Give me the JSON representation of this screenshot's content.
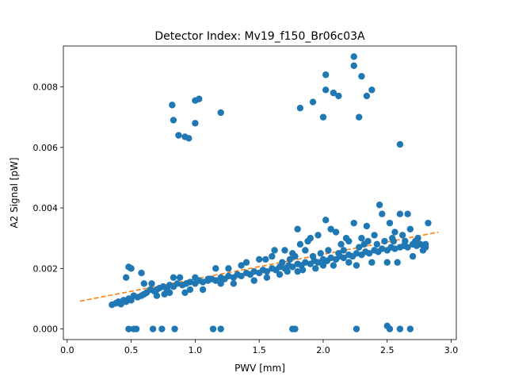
{
  "chart_data": {
    "type": "scatter",
    "title": "Detector Index: Mv19_f150_Br06c03A",
    "xlabel": "PWV [mm]",
    "ylabel": "A2 Signal [pW]",
    "xlim": [
      -0.03,
      3.04
    ],
    "ylim": [
      -0.00035,
      0.00935
    ],
    "xticks": [
      {
        "value": 0.0,
        "label": "0.0"
      },
      {
        "value": 0.5,
        "label": "0.5"
      },
      {
        "value": 1.0,
        "label": "1.0"
      },
      {
        "value": 1.5,
        "label": "1.5"
      },
      {
        "value": 2.0,
        "label": "2.0"
      },
      {
        "value": 2.5,
        "label": "2.5"
      },
      {
        "value": 3.0,
        "label": "3.0"
      }
    ],
    "yticks": [
      {
        "value": 0.0,
        "label": "0.000"
      },
      {
        "value": 0.002,
        "label": "0.002"
      },
      {
        "value": 0.004,
        "label": "0.004"
      },
      {
        "value": 0.006,
        "label": "0.006"
      },
      {
        "value": 0.008,
        "label": "0.008"
      }
    ],
    "grid": false,
    "colors": {
      "points": "#1f77b4",
      "fit": "#ff7f0e",
      "axes": "#000000"
    },
    "series": [
      {
        "name": "measurements",
        "kind": "scatter",
        "points": [
          [
            0.35,
            0.0008
          ],
          [
            0.38,
            0.00085
          ],
          [
            0.4,
            0.0009
          ],
          [
            0.42,
            0.00082
          ],
          [
            0.44,
            0.00095
          ],
          [
            0.46,
            0.0009
          ],
          [
            0.48,
            0.001
          ],
          [
            0.5,
            0.00095
          ],
          [
            0.52,
            0.0011
          ],
          [
            0.55,
            0.00105
          ],
          [
            0.58,
            0.0011
          ],
          [
            0.6,
            0.00115
          ],
          [
            0.62,
            0.0012
          ],
          [
            0.65,
            0.0013
          ],
          [
            0.68,
            0.00125
          ],
          [
            0.7,
            0.0013
          ],
          [
            0.72,
            0.00135
          ],
          [
            0.75,
            0.0014
          ],
          [
            0.78,
            0.0013
          ],
          [
            0.8,
            0.00145
          ],
          [
            0.83,
            0.0014
          ],
          [
            0.86,
            0.0015
          ],
          [
            0.9,
            0.00145
          ],
          [
            0.93,
            0.0015
          ],
          [
            0.96,
            0.00155
          ],
          [
            1.0,
            0.0015
          ],
          [
            1.03,
            0.0016
          ],
          [
            1.06,
            0.00155
          ],
          [
            1.1,
            0.0016
          ],
          [
            1.13,
            0.00165
          ],
          [
            1.16,
            0.0016
          ],
          [
            1.2,
            0.0017
          ],
          [
            1.23,
            0.00165
          ],
          [
            1.26,
            0.00175
          ],
          [
            1.3,
            0.0017
          ],
          [
            1.33,
            0.0018
          ],
          [
            1.36,
            0.00175
          ],
          [
            1.4,
            0.00185
          ],
          [
            1.43,
            0.0018
          ],
          [
            1.46,
            0.0019
          ],
          [
            1.5,
            0.00185
          ],
          [
            1.53,
            0.00195
          ],
          [
            1.56,
            0.0019
          ],
          [
            1.6,
            0.002
          ],
          [
            1.63,
            0.00195
          ],
          [
            1.66,
            0.00205
          ],
          [
            1.7,
            0.002
          ],
          [
            1.73,
            0.0021
          ],
          [
            1.76,
            0.00205
          ],
          [
            1.8,
            0.00215
          ],
          [
            1.83,
            0.0021
          ],
          [
            1.86,
            0.0022
          ],
          [
            1.9,
            0.00215
          ],
          [
            1.93,
            0.00225
          ],
          [
            1.96,
            0.0022
          ],
          [
            2.0,
            0.0023
          ],
          [
            2.03,
            0.00225
          ],
          [
            2.06,
            0.00235
          ],
          [
            2.1,
            0.0023
          ],
          [
            2.13,
            0.0024
          ],
          [
            2.16,
            0.00235
          ],
          [
            2.2,
            0.00245
          ],
          [
            2.23,
            0.0024
          ],
          [
            2.26,
            0.0025
          ],
          [
            2.3,
            0.00245
          ],
          [
            2.33,
            0.00255
          ],
          [
            2.36,
            0.0025
          ],
          [
            2.4,
            0.0026
          ],
          [
            2.43,
            0.00255
          ],
          [
            2.46,
            0.00265
          ],
          [
            2.5,
            0.0026
          ],
          [
            2.53,
            0.0027
          ],
          [
            2.56,
            0.00265
          ],
          [
            2.6,
            0.0027
          ],
          [
            2.63,
            0.00275
          ],
          [
            2.66,
            0.0027
          ],
          [
            2.7,
            0.0028
          ],
          [
            2.73,
            0.00275
          ],
          [
            2.76,
            0.0028
          ],
          [
            2.8,
            0.0027
          ],
          [
            0.46,
            0.0017
          ],
          [
            0.48,
            0.00205
          ],
          [
            0.5,
            0.002
          ],
          [
            0.58,
            0.00185
          ],
          [
            0.6,
            0.0015
          ],
          [
            0.66,
            0.0015
          ],
          [
            0.7,
            0.0011
          ],
          [
            0.76,
            0.00115
          ],
          [
            0.8,
            0.0012
          ],
          [
            0.83,
            0.0017
          ],
          [
            0.88,
            0.0017
          ],
          [
            0.92,
            0.0012
          ],
          [
            0.96,
            0.0013
          ],
          [
            1.0,
            0.0017
          ],
          [
            1.06,
            0.0013
          ],
          [
            1.1,
            0.00165
          ],
          [
            1.16,
            0.002
          ],
          [
            1.2,
            0.0015
          ],
          [
            1.26,
            0.002
          ],
          [
            1.3,
            0.0015
          ],
          [
            1.36,
            0.0021
          ],
          [
            1.4,
            0.0022
          ],
          [
            1.46,
            0.0016
          ],
          [
            1.5,
            0.0023
          ],
          [
            1.56,
            0.0017
          ],
          [
            1.6,
            0.0024
          ],
          [
            1.66,
            0.0018
          ],
          [
            1.7,
            0.0026
          ],
          [
            1.72,
            0.0019
          ],
          [
            1.76,
            0.0025
          ],
          [
            1.8,
            0.0019
          ],
          [
            1.82,
            0.0028
          ],
          [
            1.84,
            0.00195
          ],
          [
            1.86,
            0.0026
          ],
          [
            1.9,
            0.003
          ],
          [
            1.94,
            0.002
          ],
          [
            1.96,
            0.0031
          ],
          [
            2.0,
            0.0021
          ],
          [
            2.02,
            0.0036
          ],
          [
            2.06,
            0.0033
          ],
          [
            2.08,
            0.0021
          ],
          [
            2.1,
            0.0032
          ],
          [
            2.14,
            0.0028
          ],
          [
            2.18,
            0.003
          ],
          [
            2.2,
            0.0022
          ],
          [
            2.24,
            0.0035
          ],
          [
            2.26,
            0.0021
          ],
          [
            2.3,
            0.003
          ],
          [
            2.34,
            0.0034
          ],
          [
            2.38,
            0.0022
          ],
          [
            2.4,
            0.0031
          ],
          [
            2.44,
            0.0041
          ],
          [
            2.46,
            0.0038
          ],
          [
            2.5,
            0.0022
          ],
          [
            2.52,
            0.0035
          ],
          [
            2.56,
            0.0032
          ],
          [
            2.58,
            0.0022
          ],
          [
            2.6,
            0.0038
          ],
          [
            2.62,
            0.0031
          ],
          [
            2.66,
            0.0038
          ],
          [
            2.68,
            0.0033
          ],
          [
            2.7,
            0.0024
          ],
          [
            2.74,
            0.003
          ],
          [
            2.78,
            0.0026
          ],
          [
            2.82,
            0.0035
          ],
          [
            1.8,
            0.0033
          ],
          [
            1.88,
            0.0029
          ],
          [
            2.2,
            0.0029
          ],
          [
            2.35,
            0.0029
          ],
          [
            2.55,
            0.0029
          ],
          [
            1.55,
            0.0023
          ],
          [
            1.62,
            0.0026
          ],
          [
            1.68,
            0.0022
          ],
          [
            1.74,
            0.0023
          ],
          [
            1.78,
            0.0024
          ],
          [
            1.92,
            0.0024
          ],
          [
            1.98,
            0.0025
          ],
          [
            2.04,
            0.0026
          ],
          [
            2.12,
            0.0025
          ],
          [
            2.16,
            0.0026
          ],
          [
            2.28,
            0.0027
          ],
          [
            2.32,
            0.0028
          ],
          [
            2.42,
            0.0028
          ],
          [
            2.48,
            0.0029
          ],
          [
            2.54,
            0.003
          ],
          [
            2.64,
            0.0029
          ],
          [
            2.72,
            0.0029
          ],
          [
            2.8,
            0.0028
          ],
          [
            0.82,
            0.0074
          ],
          [
            0.83,
            0.0069
          ],
          [
            0.87,
            0.0064
          ],
          [
            0.92,
            0.00635
          ],
          [
            0.95,
            0.0063
          ],
          [
            1.0,
            0.0068
          ],
          [
            1.0,
            0.00755
          ],
          [
            1.03,
            0.0076
          ],
          [
            1.2,
            0.00715
          ],
          [
            1.82,
            0.0073
          ],
          [
            1.92,
            0.0075
          ],
          [
            2.0,
            0.007
          ],
          [
            2.02,
            0.0079
          ],
          [
            2.02,
            0.0084
          ],
          [
            2.08,
            0.0078
          ],
          [
            2.12,
            0.0077
          ],
          [
            2.24,
            0.009
          ],
          [
            2.24,
            0.0087
          ],
          [
            2.28,
            0.007
          ],
          [
            2.3,
            0.00835
          ],
          [
            2.34,
            0.0077
          ],
          [
            2.38,
            0.0079
          ],
          [
            2.6,
            0.0061
          ],
          [
            0.48,
            0.0
          ],
          [
            0.52,
            0.0
          ],
          [
            0.54,
            0.0
          ],
          [
            0.67,
            0.0
          ],
          [
            0.74,
            0.0
          ],
          [
            0.84,
            0.0
          ],
          [
            1.14,
            0.0
          ],
          [
            1.2,
            0.0
          ],
          [
            1.76,
            0.0
          ],
          [
            1.78,
            0.0
          ],
          [
            2.26,
            0.0
          ],
          [
            2.5,
            0.0001
          ],
          [
            2.52,
            0.0
          ],
          [
            2.6,
            0.0
          ],
          [
            2.68,
            0.0
          ]
        ]
      },
      {
        "name": "linear fit",
        "kind": "line",
        "style": "dashed",
        "points": [
          [
            0.1,
            0.00092
          ],
          [
            2.9,
            0.0032
          ]
        ]
      }
    ]
  }
}
